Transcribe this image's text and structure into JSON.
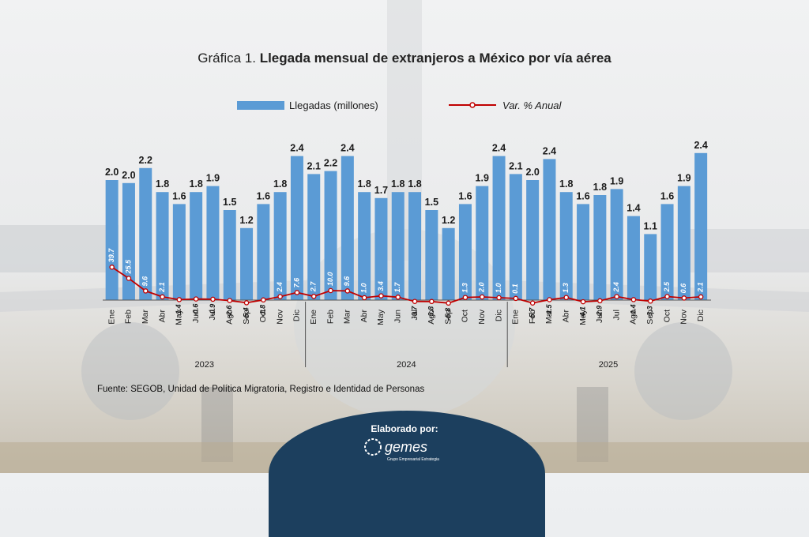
{
  "title": {
    "prefix": "Gráfica 1.",
    "main": "Llegada mensual de extranjeros a México por vía aérea"
  },
  "source": "Fuente: SEGOB, Unidad de Política Migratoria, Registro e Identidad de Personas",
  "credit": {
    "label": "Elaborado por:",
    "logo_text": "gemes",
    "logo_subtitle": "Grupo Empresarial Estrategia"
  },
  "colors": {
    "bar": "#5b9bd5",
    "line": "#c00000",
    "text": "#1a1a1a"
  },
  "chart_data": {
    "type": "bar",
    "title": "Llegada mensual de extranjeros a México por vía aérea",
    "legend": {
      "placement": "top",
      "bar_label": "Llegadas (millones)",
      "line_label": "Var. % Anual"
    },
    "categories": [
      "Ene",
      "Feb",
      "Mar",
      "Abr",
      "May",
      "Jun",
      "Jul",
      "Ago",
      "Sep",
      "Oct",
      "Nov",
      "Dic",
      "Ene",
      "Feb",
      "Mar",
      "Abr",
      "May",
      "Jun",
      "Jul",
      "Ago",
      "Sep",
      "Oct",
      "Nov",
      "Dic",
      "Ene",
      "Feb",
      "Mar",
      "Abr",
      "May",
      "Jun",
      "Jul",
      "Ago",
      "Sep",
      "Oct",
      "Nov",
      "Dic"
    ],
    "years": [
      {
        "label": "2023",
        "span": 12
      },
      {
        "label": "2024",
        "span": 12
      },
      {
        "label": "2025",
        "span": 12
      }
    ],
    "series": [
      {
        "name": "Llegadas (millones)",
        "type": "bar",
        "values": [
          2.0,
          1.95,
          2.2,
          1.8,
          1.6,
          1.8,
          1.9,
          1.5,
          1.2,
          1.6,
          1.8,
          2.4,
          2.1,
          2.15,
          2.4,
          1.8,
          1.7,
          1.8,
          1.8,
          1.5,
          1.2,
          1.6,
          1.9,
          2.4,
          2.1,
          2.0,
          2.35,
          1.8,
          1.6,
          1.75,
          1.85,
          1.4,
          1.1,
          1.6,
          1.9,
          2.45
        ],
        "labels": [
          "2.0",
          "2.0",
          "2.2",
          "1.8",
          "1.6",
          "1.8",
          "1.9",
          "1.5",
          "1.2",
          "1.6",
          "1.8",
          "2.4",
          "2.1",
          "2.2",
          "2.4",
          "1.8",
          "1.7",
          "1.8",
          "1.8",
          "1.5",
          "1.2",
          "1.6",
          "1.9",
          "2.4",
          "2.1",
          "2.0",
          "2.4",
          "1.8",
          "1.6",
          "1.8",
          "1.9",
          "1.4",
          "1.1",
          "1.6",
          "1.9",
          "2.4"
        ]
      },
      {
        "name": "Var. % Anual",
        "type": "line",
        "values": [
          39.7,
          25.5,
          9.6,
          2.1,
          -1.4,
          -0.6,
          -0.9,
          -2.6,
          -5.4,
          -1.8,
          2.4,
          7.6,
          2.7,
          10.0,
          9.6,
          1.0,
          3.4,
          1.7,
          -3.7,
          -3.8,
          -5.8,
          1.3,
          2.0,
          1.0,
          0.1,
          -5.7,
          -1.5,
          1.3,
          -4.1,
          -2.9,
          2.4,
          -1.4,
          -3.3,
          2.5,
          0.6,
          2.1
        ],
        "labels": [
          "39.7",
          "25.5",
          "9.6",
          "2.1",
          "-1.4",
          "-0.6",
          "-0.9",
          "-2.6",
          "-5.4",
          "-1.8",
          "2.4",
          "7.6",
          "2.7",
          "10.0",
          "9.6",
          "1.0",
          "3.4",
          "1.7",
          "-3.7",
          "-3.8",
          "-5.8",
          "1.3",
          "2.0",
          "1.0",
          "0.1",
          "-5.7",
          "-1.5",
          "1.3",
          "-4.1",
          "-2.9",
          "2.4",
          "-1.4",
          "-3.3",
          "2.5",
          "0.6",
          "2.1"
        ]
      }
    ],
    "ylim_bars": [
      0,
      2.6
    ],
    "ylim_line": [
      -70,
      40
    ]
  }
}
